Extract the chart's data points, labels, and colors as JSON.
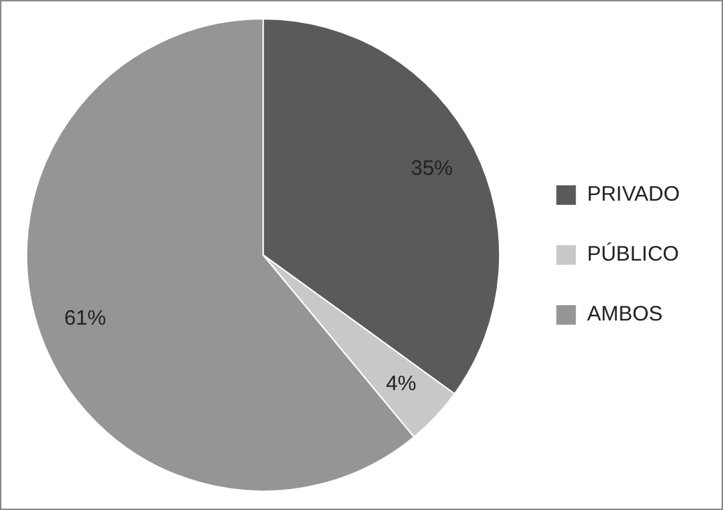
{
  "chart_data": {
    "type": "pie",
    "categories": [
      "PRIVADO",
      "PÚBLICO",
      "AMBOS"
    ],
    "values": [
      35,
      4,
      61
    ],
    "colors": [
      "#5a5a5a",
      "#c8c8c8",
      "#959595"
    ],
    "value_labels": [
      "35%",
      "4%",
      "61%"
    ],
    "legend": "right"
  }
}
